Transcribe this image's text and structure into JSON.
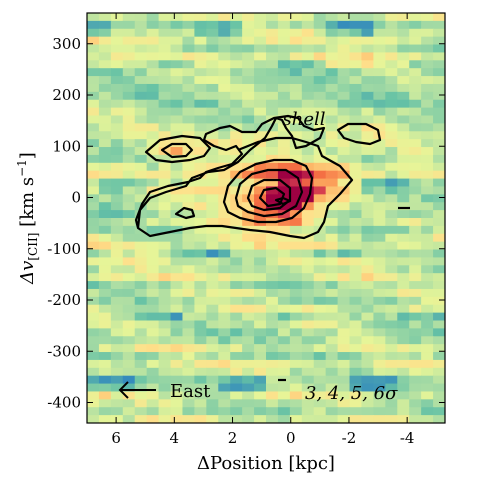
{
  "chart_data": {
    "type": "heatmap",
    "title": "",
    "xlabel": "ΔPosition [kpc]",
    "ylabel": "Δv[CII] [km s⁻¹]",
    "ylabel_parts": {
      "prefix": "Δv",
      "subscript": "[CII]",
      "units": " [km s",
      "exponent": "−1",
      "close": "]"
    },
    "xlim": [
      7,
      -5.3
    ],
    "ylim": [
      -440,
      360
    ],
    "x_ticks": [
      6,
      4,
      2,
      0,
      -2,
      -4
    ],
    "x_tick_labels": [
      "6",
      "4",
      "2",
      "0",
      "-2",
      "-4"
    ],
    "y_ticks": [
      300,
      200,
      100,
      0,
      -100,
      -200,
      -300,
      -400
    ],
    "y_tick_labels": [
      "300",
      "200",
      "100",
      "0",
      "-100",
      "-200",
      "-300",
      "-400"
    ],
    "colormap": "Spectral_r",
    "contour_levels_sigma": [
      3,
      4,
      5,
      6
    ],
    "emission_peak": {
      "x": 0.1,
      "y": -10
    },
    "annotations": {
      "shell": "shell",
      "east": "East",
      "contour_legend": "3, 4, 5, 6σ"
    },
    "contour_color": "#000000"
  }
}
